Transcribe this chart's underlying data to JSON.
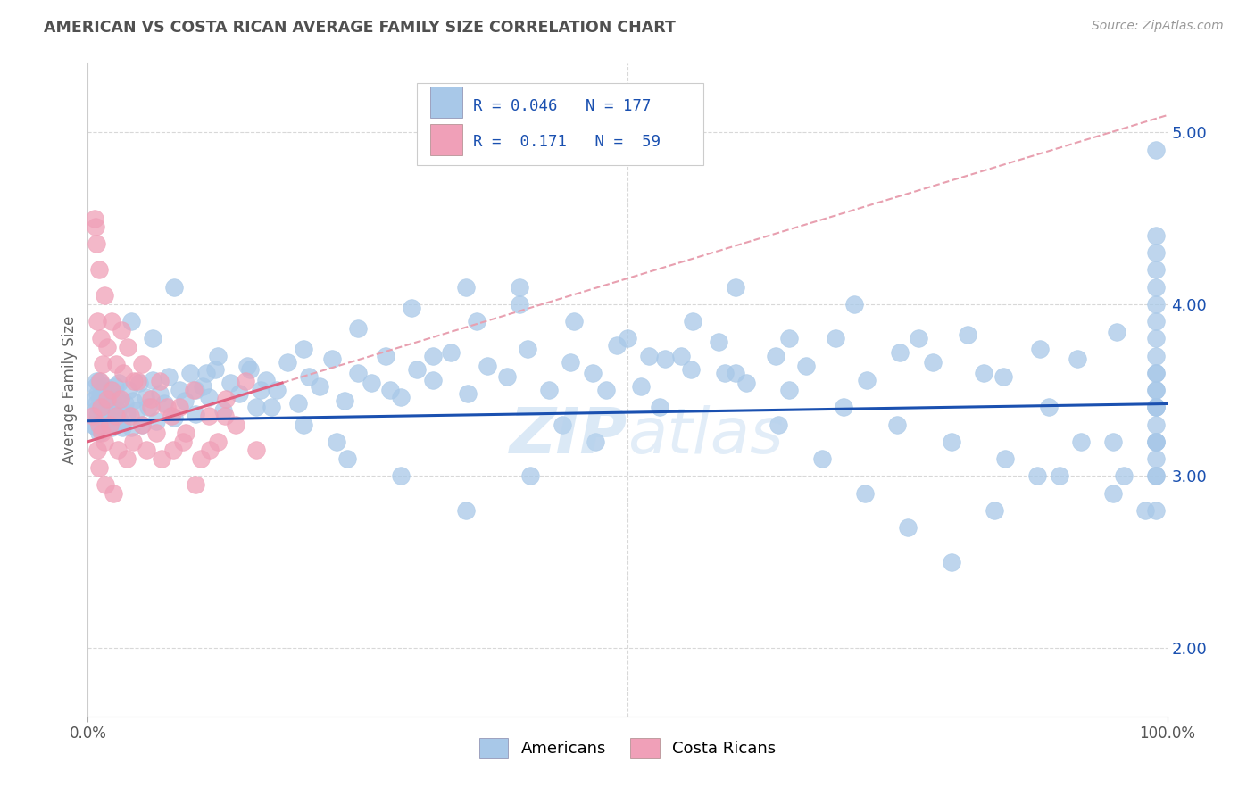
{
  "title": "AMERICAN VS COSTA RICAN AVERAGE FAMILY SIZE CORRELATION CHART",
  "source_text": "Source: ZipAtlas.com",
  "ylabel": "Average Family Size",
  "xlim": [
    0,
    1
  ],
  "ylim": [
    1.6,
    5.4
  ],
  "yticks": [
    2.0,
    3.0,
    4.0,
    5.0
  ],
  "xtick_labels": [
    "0.0%",
    "100.0%"
  ],
  "watermark": "ZIPAtlas",
  "american_color": "#a8c8e8",
  "costarican_color": "#f0a0b8",
  "american_line_color": "#1a50b0",
  "costarican_line_color": "#e06080",
  "costarican_trend_dashed_color": "#e8a0b0",
  "background_color": "#ffffff",
  "grid_color": "#d8d8d8",
  "title_color": "#505050",
  "legend_text_color": "#1a50b0",
  "legend_rn_color": "#1a50b0",
  "americans_x": [
    0.005,
    0.006,
    0.007,
    0.007,
    0.008,
    0.008,
    0.008,
    0.009,
    0.009,
    0.01,
    0.01,
    0.01,
    0.011,
    0.011,
    0.012,
    0.012,
    0.013,
    0.013,
    0.014,
    0.014,
    0.015,
    0.015,
    0.016,
    0.016,
    0.017,
    0.018,
    0.019,
    0.02,
    0.021,
    0.022,
    0.023,
    0.024,
    0.025,
    0.026,
    0.027,
    0.028,
    0.029,
    0.03,
    0.032,
    0.034,
    0.036,
    0.038,
    0.04,
    0.042,
    0.045,
    0.048,
    0.05,
    0.053,
    0.056,
    0.06,
    0.063,
    0.067,
    0.071,
    0.075,
    0.08,
    0.085,
    0.09,
    0.095,
    0.1,
    0.106,
    0.112,
    0.118,
    0.125,
    0.132,
    0.14,
    0.148,
    0.156,
    0.165,
    0.175,
    0.185,
    0.195,
    0.205,
    0.215,
    0.226,
    0.238,
    0.25,
    0.263,
    0.276,
    0.29,
    0.305,
    0.32,
    0.336,
    0.352,
    0.37,
    0.388,
    0.407,
    0.427,
    0.447,
    0.468,
    0.49,
    0.512,
    0.535,
    0.559,
    0.584,
    0.61,
    0.637,
    0.665,
    0.693,
    0.722,
    0.752,
    0.783,
    0.815,
    0.848,
    0.882,
    0.917,
    0.953,
    0.99,
    0.99,
    0.99,
    0.99,
    0.1,
    0.15,
    0.2,
    0.25,
    0.3,
    0.35,
    0.4,
    0.45,
    0.5,
    0.55,
    0.6,
    0.65,
    0.7,
    0.75,
    0.8,
    0.85,
    0.9,
    0.95,
    0.98,
    0.99,
    0.04,
    0.08,
    0.12,
    0.16,
    0.2,
    0.24,
    0.28,
    0.32,
    0.36,
    0.4,
    0.44,
    0.48,
    0.52,
    0.56,
    0.6,
    0.64,
    0.68,
    0.72,
    0.76,
    0.8,
    0.84,
    0.88,
    0.92,
    0.96,
    0.99,
    0.06,
    0.11,
    0.17,
    0.23,
    0.29,
    0.35,
    0.41,
    0.47,
    0.53,
    0.59,
    0.65,
    0.71,
    0.77,
    0.83,
    0.89,
    0.95,
    0.99,
    0.99,
    0.99,
    0.99,
    0.99,
    0.99,
    0.99,
    0.99,
    0.99,
    0.99,
    0.99,
    0.99,
    0.99,
    0.99,
    0.99,
    0.99,
    0.99,
    0.99
  ],
  "americans_y": [
    3.3,
    3.45,
    3.38,
    3.52,
    3.28,
    3.42,
    3.55,
    3.35,
    3.48,
    3.25,
    3.4,
    3.55,
    3.32,
    3.46,
    3.28,
    3.42,
    3.35,
    3.5,
    3.3,
    3.45,
    3.38,
    3.52,
    3.3,
    3.44,
    3.36,
    3.28,
    3.42,
    3.35,
    3.5,
    3.28,
    3.44,
    3.36,
    3.52,
    3.3,
    3.46,
    3.38,
    3.54,
    3.32,
    3.28,
    3.42,
    3.36,
    3.5,
    3.28,
    3.44,
    3.38,
    3.54,
    3.3,
    3.46,
    3.4,
    3.56,
    3.32,
    3.48,
    3.42,
    3.58,
    3.34,
    3.5,
    3.44,
    3.6,
    3.36,
    3.52,
    3.46,
    3.62,
    3.38,
    3.54,
    3.48,
    3.64,
    3.4,
    3.56,
    3.5,
    3.66,
    3.42,
    3.58,
    3.52,
    3.68,
    3.44,
    3.6,
    3.54,
    3.7,
    3.46,
    3.62,
    3.56,
    3.72,
    3.48,
    3.64,
    3.58,
    3.74,
    3.5,
    3.66,
    3.6,
    3.76,
    3.52,
    3.68,
    3.62,
    3.78,
    3.54,
    3.7,
    3.64,
    3.8,
    3.56,
    3.72,
    3.66,
    3.82,
    3.58,
    3.74,
    3.68,
    3.84,
    3.6,
    4.9,
    3.4,
    3.2,
    3.5,
    3.62,
    3.74,
    3.86,
    3.98,
    4.1,
    4.0,
    3.9,
    3.8,
    3.7,
    3.6,
    3.5,
    3.4,
    3.3,
    3.2,
    3.1,
    3.0,
    2.9,
    2.8,
    3.5,
    3.9,
    4.1,
    3.7,
    3.5,
    3.3,
    3.1,
    3.5,
    3.7,
    3.9,
    4.1,
    3.3,
    3.5,
    3.7,
    3.9,
    4.1,
    3.3,
    3.1,
    2.9,
    2.7,
    2.5,
    2.8,
    3.0,
    3.2,
    3.0,
    2.8,
    3.8,
    3.6,
    3.4,
    3.2,
    3.0,
    2.8,
    3.0,
    3.2,
    3.4,
    3.6,
    3.8,
    4.0,
    3.8,
    3.6,
    3.4,
    3.2,
    3.5,
    3.4,
    3.3,
    3.2,
    3.1,
    3.0,
    3.6,
    3.7,
    3.8,
    3.9,
    4.0,
    4.1,
    4.2,
    4.3,
    4.4,
    3.4,
    3.2,
    3.0
  ],
  "costaricans_x": [
    0.005,
    0.007,
    0.009,
    0.01,
    0.01,
    0.011,
    0.012,
    0.013,
    0.014,
    0.015,
    0.016,
    0.018,
    0.02,
    0.022,
    0.024,
    0.026,
    0.028,
    0.03,
    0.033,
    0.036,
    0.039,
    0.042,
    0.046,
    0.05,
    0.054,
    0.058,
    0.063,
    0.068,
    0.073,
    0.079,
    0.085,
    0.091,
    0.098,
    0.105,
    0.112,
    0.12,
    0.128,
    0.137,
    0.146,
    0.156,
    0.01,
    0.012,
    0.015,
    0.018,
    0.022,
    0.026,
    0.031,
    0.037,
    0.043,
    0.05,
    0.058,
    0.067,
    0.077,
    0.088,
    0.1,
    0.113,
    0.127,
    0.008,
    0.006,
    0.009
  ],
  "costaricans_y": [
    3.35,
    4.45,
    3.15,
    3.3,
    3.05,
    3.55,
    3.4,
    3.25,
    3.65,
    3.2,
    2.95,
    3.45,
    3.3,
    3.5,
    2.9,
    3.35,
    3.15,
    3.45,
    3.6,
    3.1,
    3.35,
    3.2,
    3.55,
    3.3,
    3.15,
    3.45,
    3.25,
    3.1,
    3.4,
    3.15,
    3.4,
    3.25,
    3.5,
    3.1,
    3.35,
    3.2,
    3.45,
    3.3,
    3.55,
    3.15,
    4.2,
    3.8,
    4.05,
    3.75,
    3.9,
    3.65,
    3.85,
    3.75,
    3.55,
    3.65,
    3.4,
    3.55,
    3.35,
    3.2,
    2.95,
    3.15,
    3.35,
    4.35,
    4.5,
    3.9
  ],
  "am_trend_x0": 0.0,
  "am_trend_y0": 3.32,
  "am_trend_x1": 1.0,
  "am_trend_y1": 3.42,
  "cr_trend_x0": 0.0,
  "cr_trend_y0": 3.2,
  "cr_trend_x1": 1.0,
  "cr_trend_y1": 5.1
}
